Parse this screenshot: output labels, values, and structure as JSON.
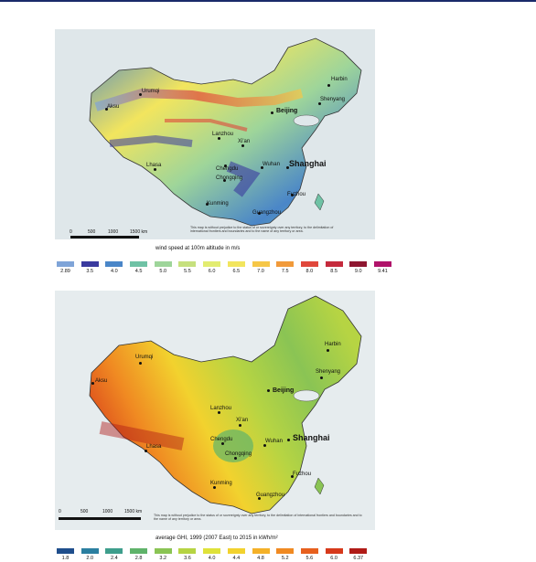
{
  "map1": {
    "cities": [
      {
        "name": "Urumqi",
        "size": "small"
      },
      {
        "name": "Aksu",
        "size": "small"
      },
      {
        "name": "Harbin",
        "size": "small"
      },
      {
        "name": "Shenyang",
        "size": "small"
      },
      {
        "name": "Beijing",
        "size": "mid"
      },
      {
        "name": "Lanzhou",
        "size": "small"
      },
      {
        "name": "Xi'an",
        "size": "small"
      },
      {
        "name": "Lhasa",
        "size": "small"
      },
      {
        "name": "Wuhan",
        "size": "small"
      },
      {
        "name": "Shanghai",
        "size": "big"
      },
      {
        "name": "Chengdu",
        "size": "small"
      },
      {
        "name": "Chongqing",
        "size": "small"
      },
      {
        "name": "Kunming",
        "size": "small"
      },
      {
        "name": "Fuzhou",
        "size": "small"
      },
      {
        "name": "Guangzhou",
        "size": "small"
      }
    ],
    "scale_labels": [
      "0",
      "500",
      "1000",
      "1500 km"
    ],
    "disclaimer": "This map is without prejudice to the status of or sovereignty over any territory, to the delimitation of international frontiers and boundaries and to the name of any territory or area.",
    "legend_title": "wind speed at 100m altitude in m/s",
    "legend": [
      {
        "label": "2.89",
        "color": "#7fa4d8"
      },
      {
        "label": "3.5",
        "color": "#3a3a9e"
      },
      {
        "label": "4.0",
        "color": "#4a86c8"
      },
      {
        "label": "4.5",
        "color": "#6fc2a5"
      },
      {
        "label": "5.0",
        "color": "#9ed59a"
      },
      {
        "label": "5.5",
        "color": "#c6e07e"
      },
      {
        "label": "6.0",
        "color": "#e2ec70"
      },
      {
        "label": "6.5",
        "color": "#f2e55e"
      },
      {
        "label": "7.0",
        "color": "#f6c747"
      },
      {
        "label": "7.5",
        "color": "#f19a3a"
      },
      {
        "label": "8.0",
        "color": "#e0473b"
      },
      {
        "label": "8.5",
        "color": "#c52a3c"
      },
      {
        "label": "9.0",
        "color": "#8e1630"
      },
      {
        "label": "9.41",
        "color": "#b0136a"
      }
    ]
  },
  "map2": {
    "cities": [
      {
        "name": "Urumqi",
        "size": "small"
      },
      {
        "name": "Aksu",
        "size": "small"
      },
      {
        "name": "Harbin",
        "size": "small"
      },
      {
        "name": "Shenyang",
        "size": "small"
      },
      {
        "name": "Beijing",
        "size": "mid"
      },
      {
        "name": "Lanzhou",
        "size": "small"
      },
      {
        "name": "Xi'an",
        "size": "small"
      },
      {
        "name": "Lhasa",
        "size": "small"
      },
      {
        "name": "Chengdu",
        "size": "small"
      },
      {
        "name": "Chongqing",
        "size": "small"
      },
      {
        "name": "Wuhan",
        "size": "small"
      },
      {
        "name": "Shanghai",
        "size": "big"
      },
      {
        "name": "Kunming",
        "size": "small"
      },
      {
        "name": "Fuzhou",
        "size": "small"
      },
      {
        "name": "Guangzhou",
        "size": "small"
      }
    ],
    "scale_labels": [
      "0",
      "500",
      "1000",
      "1500 km"
    ],
    "disclaimer": "This map is without prejudice to the status of or sovereignty over any territory, to the delimitation of international frontiers and boundaries and to the name of any territory or area.",
    "legend_title": "average GHI, 1999 (2007 East) to 2015 in kWh/m²",
    "legend": [
      {
        "label": "1.8",
        "color": "#1f4e8c"
      },
      {
        "label": "2.0",
        "color": "#2b7fa0"
      },
      {
        "label": "2.4",
        "color": "#3e9e8c"
      },
      {
        "label": "2.8",
        "color": "#5fb36a"
      },
      {
        "label": "3.2",
        "color": "#8ac454"
      },
      {
        "label": "3.6",
        "color": "#b6d443"
      },
      {
        "label": "4.0",
        "color": "#dfe23a"
      },
      {
        "label": "4.4",
        "color": "#f2d22e"
      },
      {
        "label": "4.8",
        "color": "#f4b128"
      },
      {
        "label": "5.2",
        "color": "#f08a22"
      },
      {
        "label": "5.6",
        "color": "#e7601e"
      },
      {
        "label": "6.0",
        "color": "#d6391b"
      },
      {
        "label": "6.37",
        "color": "#b01b17"
      }
    ]
  }
}
